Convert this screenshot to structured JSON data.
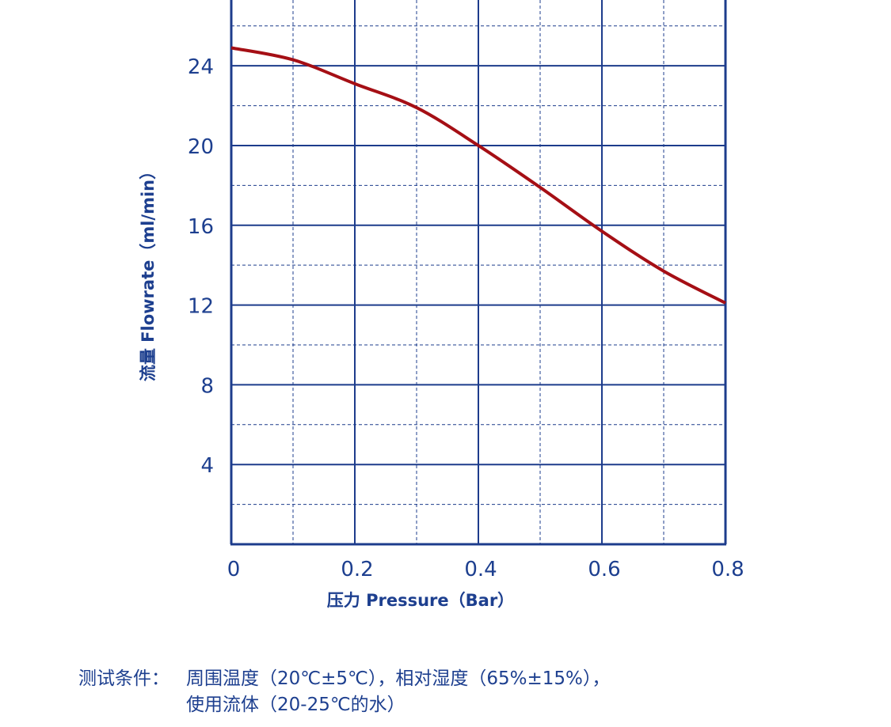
{
  "chart_data": {
    "type": "line",
    "x_label": "压力 Pressure（Bar）",
    "y_label": "流量 Flowrate（ml/min）",
    "x": [
      0,
      0.1,
      0.2,
      0.3,
      0.4,
      0.5,
      0.6,
      0.7,
      0.8
    ],
    "series": [
      {
        "name": "Flowrate",
        "color": "#a50f15",
        "values": [
          24.9,
          24.3,
          23.1,
          21.9,
          20.0,
          17.9,
          15.7,
          13.7,
          12.1
        ]
      }
    ],
    "xlim": [
      0,
      0.8
    ],
    "ylim": [
      0,
      27.3
    ],
    "xticks": [
      0,
      0.2,
      0.4,
      0.6,
      0.8
    ],
    "yticks": [
      4,
      8,
      12,
      16,
      20,
      24
    ],
    "minor_xticks": [
      0.1,
      0.3,
      0.5,
      0.7
    ],
    "minor_yticks": [
      2,
      6,
      10,
      14,
      18,
      22,
      26
    ],
    "grid": true,
    "grid_color": "#1d3c8c",
    "note_label": "测试条件：",
    "notes": [
      "周围温度（20℃±5℃），相对湿度（65%±15%），",
      "使用流体（20-25℃的水）"
    ]
  }
}
